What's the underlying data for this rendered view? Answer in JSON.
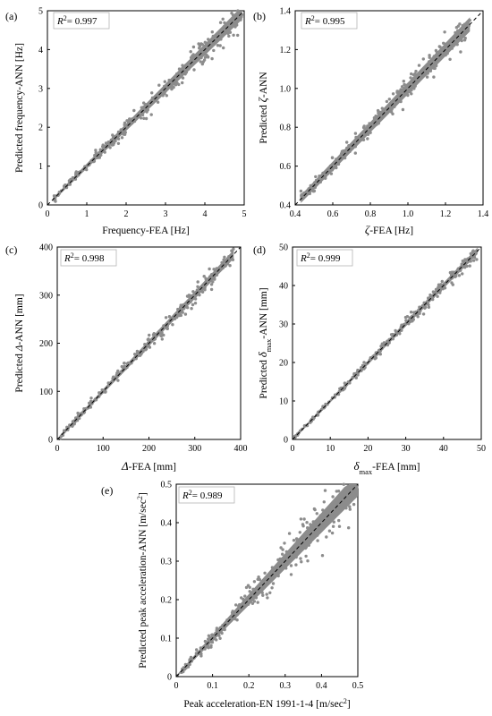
{
  "chart_data": [
    {
      "id": "a",
      "type": "scatter",
      "panel_label": "(a)",
      "r2_label": "R",
      "r2_sup": "2",
      "r2_value": "= 0.997",
      "xlabel": "Frequency-FEA [Hz]",
      "ylabel": "Predicted frequency-ANN [Hz]",
      "xlim": [
        0,
        5
      ],
      "ylim": [
        0,
        5
      ],
      "xticks": [
        "0",
        "1",
        "2",
        "3",
        "4",
        "5"
      ],
      "yticks": [
        "0",
        "1",
        "2",
        "3",
        "4",
        "5"
      ],
      "reference_line": "y = x (dashed)",
      "data_range": [
        0.15,
        4.95
      ],
      "spread": [
        0.04,
        0.28
      ],
      "color": "#8c8c8c"
    },
    {
      "id": "b",
      "type": "scatter",
      "panel_label": "(b)",
      "r2_label": "R",
      "r2_sup": "2",
      "r2_value": "= 0.995",
      "xlabel_symbol": "ζ",
      "xlabel": "-FEA [Hz]",
      "ylabel": "Predicted ζ-ANN",
      "xlim": [
        0.4,
        1.4
      ],
      "ylim": [
        0.4,
        1.4
      ],
      "xticks": [
        "0.4",
        "0.6",
        "0.8",
        "1.0",
        "1.2",
        "1.4"
      ],
      "yticks": [
        "0.4",
        "0.6",
        "0.8",
        "1.0",
        "1.2",
        "1.4"
      ],
      "reference_line": "y = x (dashed)",
      "data_range": [
        0.43,
        1.33
      ],
      "spread": [
        0.02,
        0.05
      ],
      "color": "#8c8c8c"
    },
    {
      "id": "c",
      "type": "scatter",
      "panel_label": "(c)",
      "r2_label": "R",
      "r2_sup": "2",
      "r2_value": "= 0.998",
      "xlabel_symbol": "Δ",
      "xlabel": "-FEA [mm]",
      "ylabel": "Predicted Δ-ANN [mm]",
      "xlim": [
        0,
        400
      ],
      "ylim": [
        0,
        400
      ],
      "xticks": [
        "0",
        "100",
        "200",
        "300",
        "400"
      ],
      "yticks": [
        "0",
        "100",
        "200",
        "300",
        "400"
      ],
      "reference_line": "y = x (dashed)",
      "data_range": [
        5,
        385
      ],
      "spread": [
        3,
        14
      ],
      "color": "#8c8c8c"
    },
    {
      "id": "d",
      "type": "scatter",
      "panel_label": "(d)",
      "r2_label": "R",
      "r2_sup": "2",
      "r2_value": "= 0.999",
      "xlabel_symbol": "δ",
      "xlabel_sub": "max",
      "xlabel": "-FEA [mm]",
      "ylabel": "Predicted δmax-ANN [mm]",
      "xlim": [
        0,
        50
      ],
      "ylim": [
        0,
        50
      ],
      "xticks": [
        "0",
        "10",
        "20",
        "30",
        "40",
        "50"
      ],
      "yticks": [
        "0",
        "10",
        "20",
        "30",
        "40",
        "50"
      ],
      "reference_line": "y = x (dashed)",
      "data_range": [
        0.5,
        49
      ],
      "spread": [
        0.3,
        1.3
      ],
      "color": "#8c8c8c"
    },
    {
      "id": "e",
      "type": "scatter",
      "panel_label": "(e)",
      "r2_label": "R",
      "r2_sup": "2",
      "r2_value": "= 0.989",
      "xlabel": "Peak acceleration-EN 1991-1-4 [m/sec",
      "xlabel_sup": "2",
      "xlabel_end": "]",
      "ylabel": "Predicted peak acceleration-ANN [m/sec",
      "ylabel_sup": "2",
      "ylabel_end": "]",
      "xlim": [
        0,
        0.5
      ],
      "ylim": [
        0,
        0.5
      ],
      "xticks": [
        "0",
        "0.1",
        "0.2",
        "0.3",
        "0.4",
        "0.5"
      ],
      "yticks": [
        "0",
        "0.1",
        "0.2",
        "0.3",
        "0.4",
        "0.5"
      ],
      "reference_line": "y = x (dashed)",
      "data_range": [
        0.002,
        0.5
      ],
      "spread": [
        0.003,
        0.055
      ],
      "color": "#8c8c8c"
    }
  ]
}
